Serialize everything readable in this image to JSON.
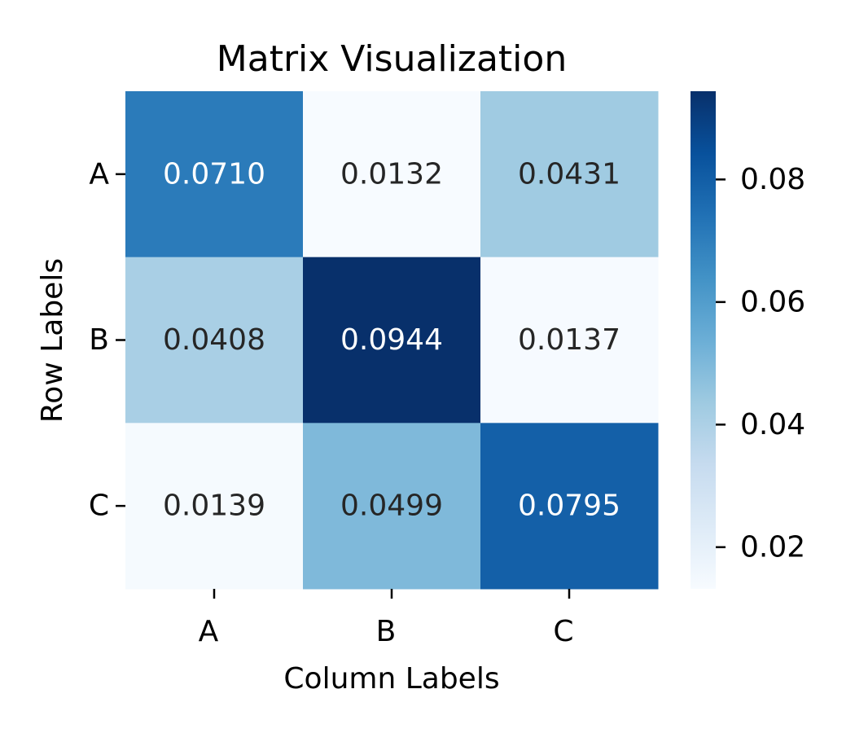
{
  "chart_data": {
    "type": "heatmap",
    "title": "Matrix Visualization",
    "xlabel": "Column Labels",
    "ylabel": "Row Labels",
    "columns": [
      "A",
      "B",
      "C"
    ],
    "rows": [
      "A",
      "B",
      "C"
    ],
    "values": [
      [
        0.071,
        0.0132,
        0.0431
      ],
      [
        0.0408,
        0.0944,
        0.0137
      ],
      [
        0.0139,
        0.0499,
        0.0795
      ]
    ],
    "value_labels": [
      [
        "0.0710",
        "0.0132",
        "0.0431"
      ],
      [
        "0.0408",
        "0.0944",
        "0.0137"
      ],
      [
        "0.0139",
        "0.0499",
        "0.0795"
      ]
    ],
    "colormap": "Blues",
    "colorbar": {
      "min": 0.0132,
      "max": 0.0944,
      "ticks": [
        0.02,
        0.04,
        0.06,
        0.08
      ],
      "tick_labels": [
        "0.02",
        "0.04",
        "0.06",
        "0.08"
      ]
    }
  }
}
